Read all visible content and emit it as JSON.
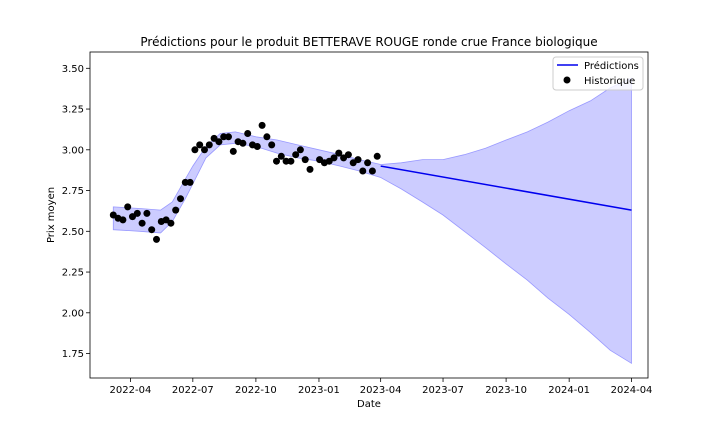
{
  "chart_data": {
    "type": "line",
    "title": "Prédictions pour le produit BETTERAVE ROUGE ronde crue France biologique",
    "xlabel": "Date",
    "ylabel": "Prix moyen",
    "xlim": [
      "2022-02-01",
      "2024-04-25"
    ],
    "ylim": [
      1.6,
      3.6
    ],
    "x_ticks": [
      "2022-04-01",
      "2022-07-01",
      "2022-10-01",
      "2023-01-01",
      "2023-04-01",
      "2023-07-01",
      "2023-10-01",
      "2024-01-01",
      "2024-04-01"
    ],
    "x_tick_labels": [
      "2022-04",
      "2022-07",
      "2022-10",
      "2023-01",
      "2023-04",
      "2023-07",
      "2023-10",
      "2024-01",
      "2024-04"
    ],
    "y_ticks": [
      1.75,
      2.0,
      2.25,
      2.5,
      2.75,
      3.0,
      3.25,
      3.5
    ],
    "y_tick_labels": [
      "1.75",
      "2.00",
      "2.25",
      "2.50",
      "2.75",
      "3.00",
      "3.25",
      "3.50"
    ],
    "legend_position": "top-right",
    "colors": {
      "prediction": "#0000ee",
      "band": "#ccccff",
      "band_edge": "#9999ff",
      "history": "#000000"
    },
    "series": [
      {
        "name": "Prédictions",
        "kind": "line",
        "x": [
          "2023-04-01",
          "2024-04-01"
        ],
        "y": [
          2.9,
          2.63
        ]
      },
      {
        "name": "Historique",
        "kind": "scatter",
        "x": [
          "2022-03-07",
          "2022-03-14",
          "2022-03-21",
          "2022-03-28",
          "2022-04-04",
          "2022-04-11",
          "2022-04-18",
          "2022-04-25",
          "2022-05-02",
          "2022-05-09",
          "2022-05-16",
          "2022-05-23",
          "2022-05-30",
          "2022-06-06",
          "2022-06-13",
          "2022-06-20",
          "2022-06-27",
          "2022-07-04",
          "2022-07-11",
          "2022-07-18",
          "2022-07-25",
          "2022-08-01",
          "2022-08-08",
          "2022-08-15",
          "2022-08-22",
          "2022-08-29",
          "2022-09-05",
          "2022-09-12",
          "2022-09-19",
          "2022-09-26",
          "2022-10-03",
          "2022-10-10",
          "2022-10-17",
          "2022-10-24",
          "2022-10-31",
          "2022-11-07",
          "2022-11-14",
          "2022-11-21",
          "2022-11-28",
          "2022-12-05",
          "2022-12-12",
          "2022-12-19",
          "2023-01-02",
          "2023-01-09",
          "2023-01-16",
          "2023-01-23",
          "2023-01-30",
          "2023-02-06",
          "2023-02-13",
          "2023-02-20",
          "2023-02-27",
          "2023-03-06",
          "2023-03-13",
          "2023-03-20",
          "2023-03-27"
        ],
        "y": [
          2.6,
          2.58,
          2.57,
          2.65,
          2.59,
          2.61,
          2.55,
          2.61,
          2.51,
          2.45,
          2.56,
          2.57,
          2.55,
          2.63,
          2.7,
          2.8,
          2.8,
          3.0,
          3.03,
          3.0,
          3.03,
          3.07,
          3.05,
          3.08,
          3.08,
          2.99,
          3.05,
          3.04,
          3.1,
          3.03,
          3.02,
          3.15,
          3.08,
          3.03,
          2.93,
          2.96,
          2.93,
          2.93,
          2.97,
          3.0,
          2.94,
          2.88,
          2.94,
          2.92,
          2.93,
          2.95,
          2.98,
          2.95,
          2.97,
          2.92,
          2.94,
          2.87,
          2.92,
          2.87,
          2.96
        ]
      }
    ],
    "confidence_band": {
      "x": [
        "2022-03-07",
        "2022-04-15",
        "2022-05-15",
        "2022-06-01",
        "2022-06-20",
        "2022-07-01",
        "2022-07-20",
        "2022-08-10",
        "2022-09-01",
        "2022-10-01",
        "2022-11-01",
        "2022-12-01",
        "2023-01-01",
        "2023-02-01",
        "2023-03-01",
        "2023-04-01",
        "2023-05-01",
        "2023-06-01",
        "2023-07-01",
        "2023-08-01",
        "2023-09-01",
        "2023-10-01",
        "2023-11-01",
        "2023-12-01",
        "2024-01-01",
        "2024-02-01",
        "2024-03-01",
        "2024-04-01"
      ],
      "upper": [
        2.65,
        2.64,
        2.63,
        2.68,
        2.82,
        2.9,
        3.02,
        3.1,
        3.11,
        3.08,
        3.06,
        3.03,
        3.0,
        2.97,
        2.94,
        2.91,
        2.92,
        2.94,
        2.94,
        2.97,
        3.01,
        3.06,
        3.11,
        3.17,
        3.24,
        3.3,
        3.38,
        3.44
      ],
      "lower": [
        2.51,
        2.5,
        2.49,
        2.56,
        2.7,
        2.79,
        2.95,
        3.03,
        3.04,
        3.02,
        2.98,
        2.95,
        2.93,
        2.9,
        2.87,
        2.83,
        2.76,
        2.68,
        2.6,
        2.5,
        2.4,
        2.3,
        2.2,
        2.09,
        1.99,
        1.88,
        1.77,
        1.69
      ]
    }
  }
}
